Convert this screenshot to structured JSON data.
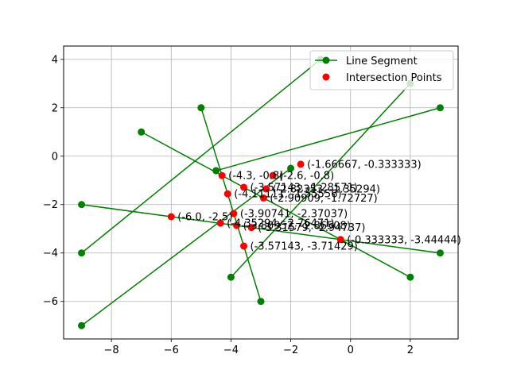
{
  "chart_data": {
    "type": "line",
    "title": "",
    "xlabel": "",
    "ylabel": "",
    "xlim": [
      -9.6,
      3.6
    ],
    "ylim": [
      -7.55,
      4.55
    ],
    "xticks": [
      -8,
      -6,
      -4,
      -2,
      0,
      2
    ],
    "yticks": [
      -6,
      -4,
      -2,
      0,
      2,
      4
    ],
    "xtick_labels": [
      "−8",
      "−6",
      "−4",
      "−2",
      "0",
      "2"
    ],
    "ytick_labels": [
      "−6",
      "−4",
      "−2",
      "0",
      "2",
      "4"
    ],
    "grid": true,
    "legend": {
      "placement": "upper right",
      "entries": [
        "Line Segment",
        "Intersection Points"
      ]
    },
    "colors": {
      "segments": "#008000",
      "intersections": "#ff0000",
      "grid": "#b0b0b0"
    },
    "segments": [
      [
        [
          -9,
          -7
        ],
        [
          -2,
          -0.5
        ]
      ],
      [
        [
          -9,
          -4
        ],
        [
          -1,
          4
        ]
      ],
      [
        [
          -9,
          -2
        ],
        [
          3,
          -4
        ]
      ],
      [
        [
          -7,
          1
        ],
        [
          2,
          -5
        ]
      ],
      [
        [
          -5,
          2
        ],
        [
          -3,
          -6
        ]
      ],
      [
        [
          -4,
          -5
        ],
        [
          2,
          3
        ]
      ],
      [
        [
          -4.5,
          -0.6
        ],
        [
          3,
          2
        ]
      ]
    ],
    "intersections": [
      {
        "x": -1.66667,
        "y": -0.333333,
        "label": "(-1.66667, -0.333333)"
      },
      {
        "x": -4.3,
        "y": -0.8,
        "label": "(-4.3, -0.8)"
      },
      {
        "x": -2.6,
        "y": -0.8,
        "label": "(-2.6, -0.8)"
      },
      {
        "x": -3.57143,
        "y": -1.28571,
        "label": "(-3.57143, -1.28571)"
      },
      {
        "x": -2.82353,
        "y": -1.35294,
        "label": "(-2.82353, -1.35294)"
      },
      {
        "x": -4.11111,
        "y": -1.55556,
        "label": "(-4.11111, -1.55556)"
      },
      {
        "x": -2.90909,
        "y": -1.72727,
        "label": "(-2.90909, -1.72727)"
      },
      {
        "x": -3.90741,
        "y": -2.37037,
        "label": "(-3.90741, -2.37037)"
      },
      {
        "x": -6.0,
        "y": -2.5,
        "label": "(-6.0, -2.5)"
      },
      {
        "x": -4.35294,
        "y": -2.76471,
        "label": "(-4.35294, -2.76471)"
      },
      {
        "x": -3.80952,
        "y": -2.86508,
        "label": "(-3.80952, -2.86508)"
      },
      {
        "x": -3.31579,
        "y": -2.94737,
        "label": "(-3.31579, -2.94737)"
      },
      {
        "x": -0.333333,
        "y": -3.44444,
        "label": "(-0.333333, -3.44444)"
      },
      {
        "x": -3.57143,
        "y": -3.71429,
        "label": "(-3.57143, -3.71429)"
      }
    ]
  }
}
